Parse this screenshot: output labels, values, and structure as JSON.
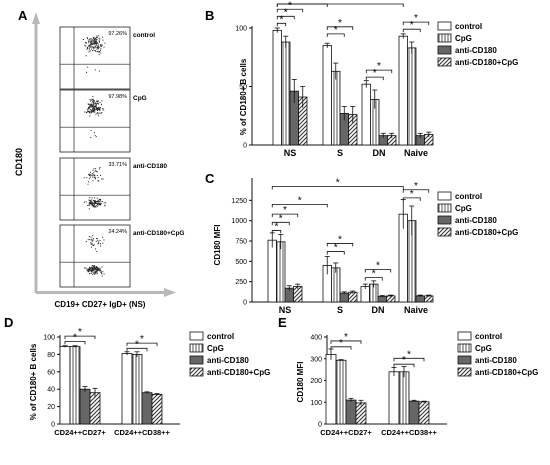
{
  "panels": [
    {
      "id": "A",
      "letter": "A"
    },
    {
      "id": "B",
      "letter": "B"
    },
    {
      "id": "C",
      "letter": "C"
    },
    {
      "id": "D",
      "letter": "D"
    },
    {
      "id": "E",
      "letter": "E"
    }
  ],
  "flow": {
    "ylabel": "CD180",
    "xlabel": "CD19+ CD27+ IgD+ (NS)",
    "plots": [
      {
        "label": "control",
        "pct": "97.26%"
      },
      {
        "label": "CpG",
        "pct": "97.98%"
      },
      {
        "label": "anti-CD180",
        "pct": "33.71%"
      },
      {
        "label": "anti-CD180+CpG",
        "pct": "24.24%"
      }
    ]
  },
  "legend_items": [
    "control",
    "CpG",
    "anti-CD180",
    "anti-CD180+CpG"
  ],
  "star": "*",
  "chart_data": [
    {
      "id": "B",
      "type": "bar",
      "title": "",
      "xlabel": "",
      "ylabel": "% of CD180+ B cells",
      "ylim": [
        0,
        100
      ],
      "yticks": [
        0,
        50,
        100
      ],
      "categories": [
        "NS",
        "S",
        "DN",
        "Naive"
      ],
      "series": [
        {
          "name": "control",
          "values": [
            98,
            85,
            52,
            93
          ],
          "errors": [
            2,
            2,
            3,
            2
          ]
        },
        {
          "name": "CpG",
          "values": [
            88,
            63,
            39,
            83
          ],
          "errors": [
            5,
            7,
            8,
            5
          ]
        },
        {
          "name": "anti-CD180",
          "values": [
            46,
            27,
            8,
            8
          ],
          "errors": [
            10,
            6,
            2,
            2
          ]
        },
        {
          "name": "anti-CD180+CpG",
          "values": [
            41,
            26,
            8,
            9
          ],
          "errors": [
            9,
            7,
            2,
            2
          ]
        }
      ],
      "significance": [
        {
          "cat": 0,
          "from": 0,
          "to": 1,
          "y": 104
        },
        {
          "cat": 0,
          "from": 0,
          "to": 2,
          "y": 110
        },
        {
          "cat": 0,
          "from": 0,
          "to": 3,
          "y": 116
        },
        {
          "from_cat": 0,
          "to_cat": 1,
          "y": 122
        },
        {
          "from_cat": 0,
          "to_cat": 3,
          "y": 128
        },
        {
          "cat": 1,
          "from": 0,
          "to": 2,
          "y": 95
        },
        {
          "cat": 1,
          "from": 0,
          "to": 3,
          "y": 101
        },
        {
          "cat": 2,
          "from": 0,
          "to": 2,
          "y": 58
        },
        {
          "cat": 2,
          "from": 0,
          "to": 3,
          "y": 64
        },
        {
          "cat": 3,
          "from": 0,
          "to": 2,
          "y": 99
        },
        {
          "cat": 3,
          "from": 0,
          "to": 3,
          "y": 105
        }
      ]
    },
    {
      "id": "C",
      "type": "bar",
      "title": "",
      "xlabel": "",
      "ylabel": "CD180 MFI",
      "ylim": [
        0,
        1500
      ],
      "yticks": [
        0,
        250,
        500,
        750,
        1000,
        1250
      ],
      "categories": [
        "NS",
        "S",
        "DN",
        "Naive"
      ],
      "series": [
        {
          "name": "control",
          "values": [
            760,
            450,
            190,
            1080
          ],
          "errors": [
            90,
            110,
            30,
            180
          ]
        },
        {
          "name": "CpG",
          "values": [
            740,
            420,
            220,
            1000
          ],
          "errors": [
            90,
            60,
            40,
            180
          ]
        },
        {
          "name": "anti-CD180",
          "values": [
            170,
            110,
            70,
            75
          ],
          "errors": [
            30,
            15,
            10,
            10
          ]
        },
        {
          "name": "anti-CD180+CpG",
          "values": [
            190,
            120,
            75,
            75
          ],
          "errors": [
            30,
            15,
            10,
            10
          ]
        }
      ],
      "significance": [
        {
          "cat": 0,
          "from": 0,
          "to": 1,
          "y": 880
        },
        {
          "cat": 0,
          "from": 0,
          "to": 2,
          "y": 980
        },
        {
          "cat": 0,
          "from": 0,
          "to": 3,
          "y": 1080
        },
        {
          "from_cat": 0,
          "to_cat": 1,
          "y": 1200
        },
        {
          "from_cat": 0,
          "to_cat": 3,
          "y": 1420
        },
        {
          "cat": 1,
          "from": 0,
          "to": 2,
          "y": 620
        },
        {
          "cat": 1,
          "from": 0,
          "to": 3,
          "y": 720
        },
        {
          "cat": 2,
          "from": 0,
          "to": 2,
          "y": 300
        },
        {
          "cat": 2,
          "from": 0,
          "to": 3,
          "y": 400
        },
        {
          "cat": 3,
          "from": 0,
          "to": 2,
          "y": 1280
        },
        {
          "cat": 3,
          "from": 0,
          "to": 3,
          "y": 1380
        }
      ]
    },
    {
      "id": "D",
      "type": "bar",
      "title": "",
      "xlabel": "",
      "ylabel": "% of CD180+ B cells",
      "ylim": [
        0,
        100
      ],
      "yticks": [
        0,
        20,
        40,
        60,
        80,
        100
      ],
      "categories": [
        "CD24++CD27+",
        "CD24++CD38++"
      ],
      "series": [
        {
          "name": "control",
          "values": [
            89,
            81
          ],
          "errors": [
            1,
            2
          ]
        },
        {
          "name": "CpG",
          "values": [
            89,
            80
          ],
          "errors": [
            1,
            3
          ]
        },
        {
          "name": "anti-CD180",
          "values": [
            40,
            36
          ],
          "errors": [
            3,
            1
          ]
        },
        {
          "name": "anti-CD180+CpG",
          "values": [
            36,
            34
          ],
          "errors": [
            5,
            1
          ]
        }
      ],
      "significance": [
        {
          "cat": 0,
          "from": 0,
          "to": 2,
          "y": 95
        },
        {
          "cat": 0,
          "from": 0,
          "to": 3,
          "y": 101
        },
        {
          "cat": 1,
          "from": 0,
          "to": 2,
          "y": 87
        },
        {
          "cat": 1,
          "from": 0,
          "to": 3,
          "y": 93
        }
      ]
    },
    {
      "id": "E",
      "type": "bar",
      "title": "",
      "xlabel": "",
      "ylabel": "CD180  MFI",
      "ylim": [
        0,
        400
      ],
      "yticks": [
        0,
        100,
        200,
        300,
        400
      ],
      "categories": [
        "CD24++CD27+",
        "CD24++CD38++"
      ],
      "series": [
        {
          "name": "control",
          "values": [
            320,
            240
          ],
          "errors": [
            25,
            20
          ]
        },
        {
          "name": "CpG",
          "values": [
            293,
            240
          ],
          "errors": [
            3,
            25
          ]
        },
        {
          "name": "anti-CD180",
          "values": [
            110,
            105
          ],
          "errors": [
            8,
            4
          ]
        },
        {
          "name": "anti-CD180+CpG",
          "values": [
            97,
            102
          ],
          "errors": [
            12,
            3
          ]
        }
      ],
      "significance": [
        {
          "cat": 0,
          "from": 0,
          "to": 2,
          "y": 355
        },
        {
          "cat": 0,
          "from": 0,
          "to": 3,
          "y": 382
        },
        {
          "cat": 1,
          "from": 0,
          "to": 2,
          "y": 275
        },
        {
          "cat": 1,
          "from": 0,
          "to": 3,
          "y": 302
        }
      ]
    }
  ]
}
